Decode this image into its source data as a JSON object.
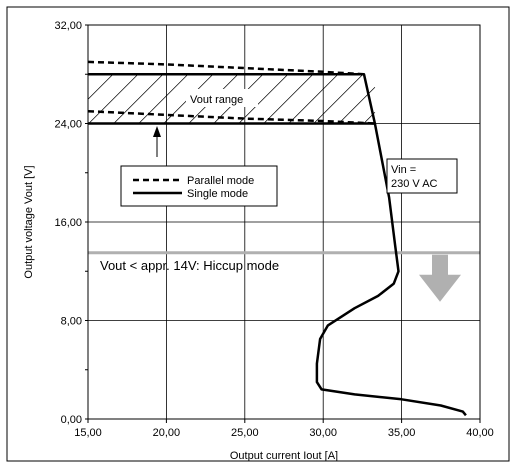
{
  "chart_data": {
    "type": "line",
    "xlabel": "Output current Iout [A]",
    "ylabel": "Output voltage Vout [V]",
    "xlim": [
      15,
      40
    ],
    "ylim": [
      0,
      32
    ],
    "x_ticks": [
      15,
      20,
      25,
      30,
      35,
      40
    ],
    "y_ticks": [
      0,
      8,
      16,
      24,
      32
    ],
    "x_tick_labels": [
      "15,00",
      "20,00",
      "25,00",
      "30,00",
      "35,00",
      "40,00"
    ],
    "y_tick_labels": [
      "0,00",
      "8,00",
      "16,00",
      "24,00",
      "32,00"
    ],
    "grid": true,
    "legend": {
      "position": "left-middle",
      "entries": [
        {
          "label": "Parallel mode",
          "style": "dashed"
        },
        {
          "label": "Single mode",
          "style": "solid"
        }
      ]
    },
    "series": [
      {
        "name": "Single mode",
        "style": "solid",
        "color": "#000000",
        "points": [
          [
            15,
            28
          ],
          [
            32.6,
            28
          ],
          [
            33.3,
            24
          ],
          [
            34.2,
            18
          ],
          [
            34.6,
            14
          ],
          [
            34.8,
            12
          ],
          [
            34.5,
            11
          ],
          [
            33.5,
            10
          ],
          [
            32,
            9
          ],
          [
            30.3,
            7.6
          ],
          [
            29.8,
            6.5
          ],
          [
            29.6,
            4.5
          ],
          [
            29.6,
            3
          ],
          [
            29.9,
            2.4
          ],
          [
            32,
            2
          ],
          [
            35,
            1.6
          ],
          [
            37.5,
            1.1
          ],
          [
            38.9,
            0.6
          ],
          [
            39.1,
            0.3
          ]
        ]
      },
      {
        "name": "Parallel mode",
        "style": "dashed",
        "color": "#000000",
        "points_upper": [
          [
            15,
            29
          ],
          [
            20,
            28.8
          ],
          [
            25,
            28.5
          ],
          [
            30,
            28.2
          ],
          [
            32.6,
            28
          ]
        ],
        "points_lower": [
          [
            15,
            25
          ],
          [
            20,
            24.7
          ],
          [
            25,
            24.4
          ],
          [
            30,
            24.2
          ],
          [
            33.3,
            24
          ]
        ]
      }
    ],
    "hatched_region": {
      "label": "Vout range",
      "x": [
        15,
        33.3
      ],
      "y": [
        24,
        28
      ]
    },
    "hiccup_threshold": {
      "y": 13.5,
      "label": "Vout < appr. 14V: Hiccup mode",
      "color": "#b0b0b0"
    },
    "annotations": {
      "vin_line1": "Vin =",
      "vin_line2": "230 V AC"
    }
  }
}
